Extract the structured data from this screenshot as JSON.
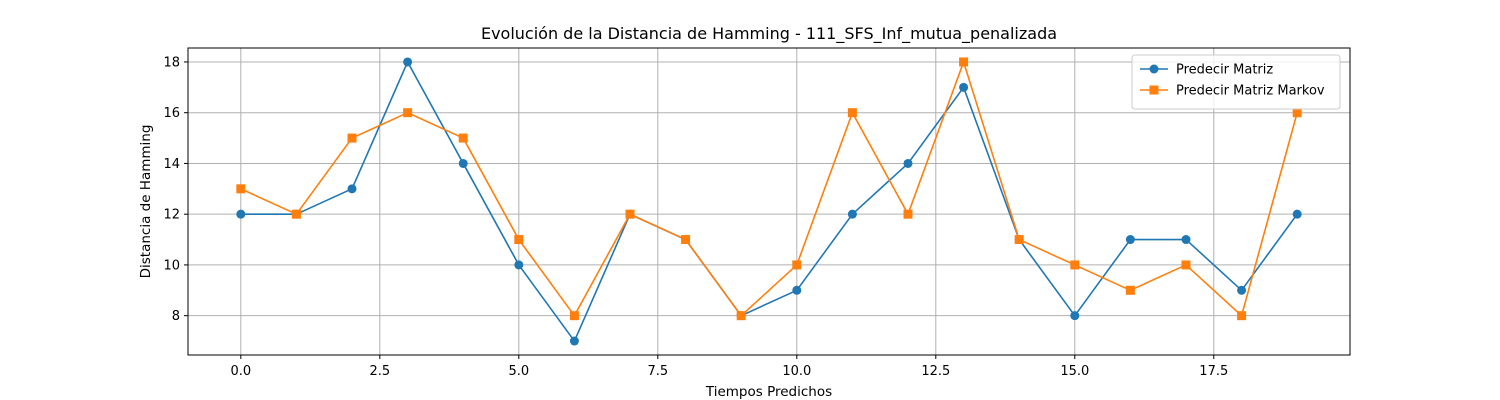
{
  "chart_data": {
    "type": "line",
    "title": "Evolución de la Distancia de Hamming - 111_SFS_Inf_mutua_penalizada",
    "xlabel": "Tiempos Predichos",
    "ylabel": "Distancia de Hamming",
    "xlim": [
      -0.95,
      19.95
    ],
    "ylim": [
      6.45,
      18.55
    ],
    "xticks": [
      0.0,
      2.5,
      5.0,
      7.5,
      10.0,
      12.5,
      15.0,
      17.5
    ],
    "xtick_labels": [
      "0.0",
      "2.5",
      "5.0",
      "7.5",
      "10.0",
      "12.5",
      "15.0",
      "17.5"
    ],
    "yticks": [
      8,
      10,
      12,
      14,
      16,
      18
    ],
    "ytick_labels": [
      "8",
      "10",
      "12",
      "14",
      "16",
      "18"
    ],
    "grid": true,
    "legend_position": "top-right",
    "x": [
      0,
      1,
      2,
      3,
      4,
      5,
      6,
      7,
      8,
      9,
      10,
      11,
      12,
      13,
      14,
      15,
      16,
      17,
      18,
      19
    ],
    "series": [
      {
        "name": "Predecir Matriz",
        "color": "#1f77b4",
        "marker": "circle",
        "values": [
          12,
          12,
          13,
          18,
          14,
          10,
          7,
          12,
          11,
          8,
          9,
          12,
          14,
          17,
          11,
          8,
          11,
          11,
          9,
          12
        ]
      },
      {
        "name": "Predecir Matriz Markov",
        "color": "#ff7f0e",
        "marker": "square",
        "values": [
          13,
          12,
          15,
          16,
          15,
          11,
          8,
          12,
          11,
          8,
          10,
          16,
          12,
          18,
          11,
          10,
          9,
          10,
          8,
          16
        ]
      }
    ]
  }
}
